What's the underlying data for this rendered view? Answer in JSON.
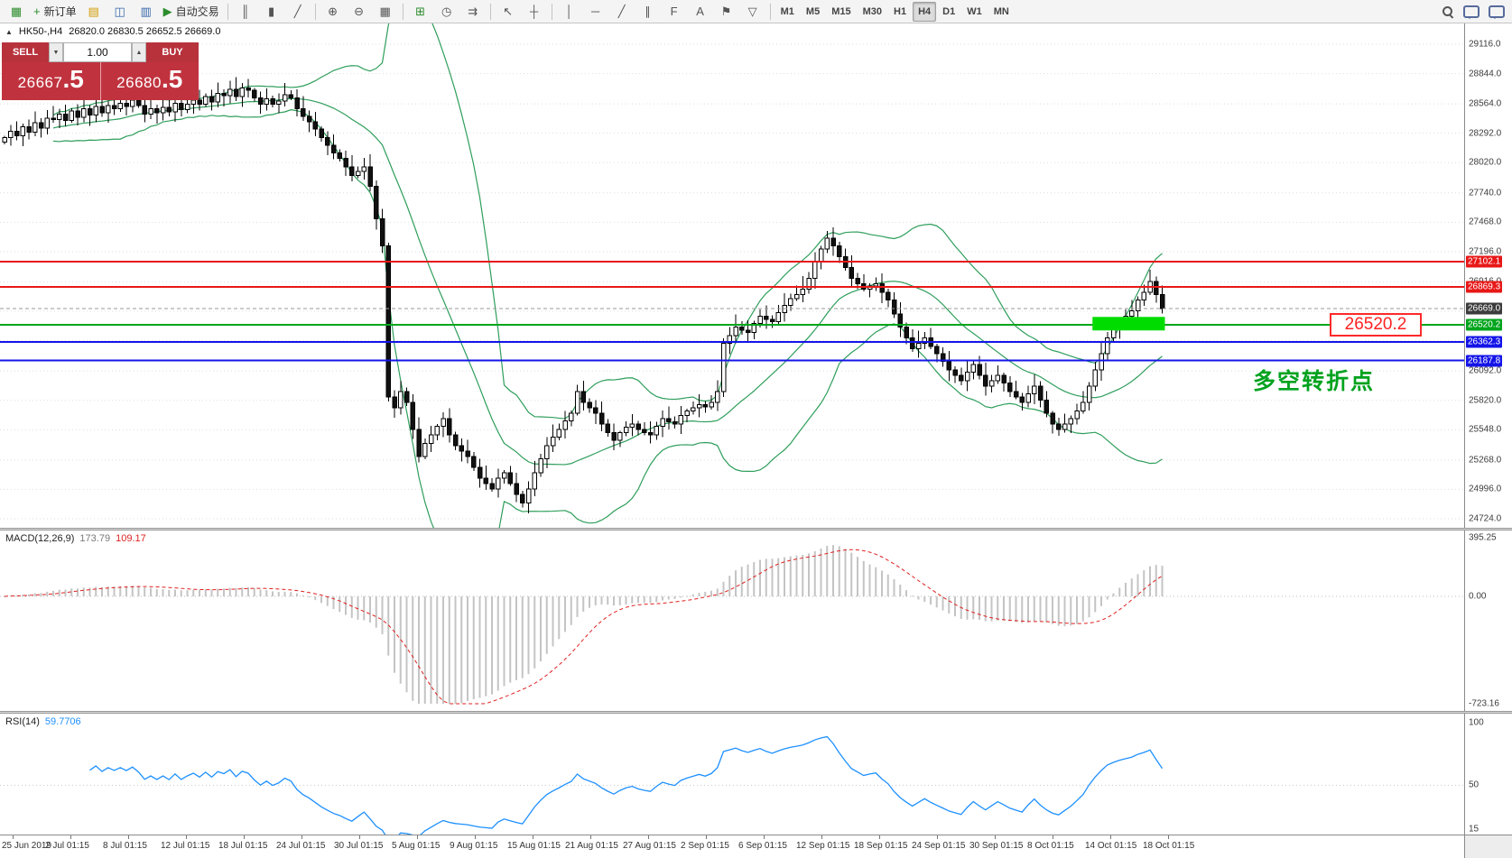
{
  "toolbar": {
    "items": [
      {
        "name": "app-icon",
        "glyph": "▦",
        "cls": "c-green",
        "static": true
      },
      {
        "name": "new-order-button",
        "glyph": "+",
        "cls": "c-green",
        "label": "新订单"
      },
      {
        "name": "market-watch-icon",
        "glyph": "▤",
        "cls": "c-amber"
      },
      {
        "name": "navigator-icon",
        "glyph": "◫",
        "cls": "c-blue"
      },
      {
        "name": "terminal-icon",
        "glyph": "▥",
        "cls": "c-blue"
      },
      {
        "name": "autotrading-button",
        "glyph": "▶",
        "cls": "c-green",
        "label": "自动交易"
      },
      {
        "sep": true
      },
      {
        "name": "bar-chart-icon",
        "glyph": "║"
      },
      {
        "name": "candlestick-chart-icon",
        "glyph": "▮"
      },
      {
        "name": "line-chart-icon",
        "glyph": "╱"
      },
      {
        "sep": true
      },
      {
        "name": "zoom-in-icon",
        "glyph": "⊕"
      },
      {
        "name": "zoom-out-icon",
        "glyph": "⊖"
      },
      {
        "name": "grid-icon",
        "glyph": "▦"
      },
      {
        "sep": true
      },
      {
        "name": "indicators-add-icon",
        "glyph": "⊞",
        "cls": "c-green"
      },
      {
        "name": "period-icon",
        "glyph": "◷"
      },
      {
        "name": "chart-shift-icon",
        "glyph": "⇉"
      },
      {
        "sep": true
      },
      {
        "name": "cursor-icon",
        "glyph": "↖"
      },
      {
        "name": "crosshair-icon",
        "glyph": "┼"
      },
      {
        "sep": true
      },
      {
        "name": "vertical-line-icon",
        "glyph": "│"
      },
      {
        "name": "horizontal-line-icon",
        "glyph": "─"
      },
      {
        "name": "trendline-icon",
        "glyph": "╱"
      },
      {
        "name": "equidistant-channel-icon",
        "glyph": "∥"
      },
      {
        "name": "fibonacci-icon",
        "glyph": "F"
      },
      {
        "name": "text-icon",
        "glyph": "A"
      },
      {
        "name": "arrows-icon",
        "glyph": "⚑"
      },
      {
        "name": "shapes-icon",
        "glyph": "▽"
      },
      {
        "sep": true
      },
      {
        "tf": true
      }
    ],
    "timeframes": [
      "M1",
      "M5",
      "M15",
      "M30",
      "H1",
      "H4",
      "D1",
      "W1",
      "MN"
    ],
    "active_timeframe": "H4",
    "right_items": [
      {
        "name": "search-icon",
        "kind": "search"
      },
      {
        "name": "chat-icon",
        "kind": "chat"
      },
      {
        "name": "community-icon",
        "kind": "chat"
      }
    ]
  },
  "chart": {
    "collapse_glyph": "▲",
    "symbol_period": "HK50-,H4",
    "ohlc": "26820.0 26830.5 26652.5 26669.0",
    "trade_panel": {
      "sell_label": "SELL",
      "buy_label": "BUY",
      "volume": "1.00",
      "down_glyph": "▼",
      "up_glyph": "▲",
      "sell_price_main": "26667",
      "sell_price_frac": ".5",
      "buy_price_main": "26680",
      "buy_price_frac": ".5"
    },
    "levels": [
      {
        "label": "27102.1",
        "price": 27102.1,
        "color": "#e81717",
        "style": "solid"
      },
      {
        "label": "26869.3",
        "price": 26869.3,
        "color": "#e81717",
        "style": "solid"
      },
      {
        "label": "26669.0",
        "price": 26669.0,
        "color": "#3c3c3c",
        "style": "current"
      },
      {
        "label": "26520.2",
        "price": 26520.2,
        "color": "#00a41c",
        "style": "solid"
      },
      {
        "label": "26362.3",
        "price": 26362.3,
        "color": "#1414e8",
        "style": "solid"
      },
      {
        "label": "26187.8",
        "price": 26187.8,
        "color": "#1414e8",
        "style": "solid"
      }
    ],
    "callout_text": "26520.2",
    "annotation_text": "多空转折点"
  },
  "macd": {
    "label": "MACD(12,26,9)",
    "value": "173.79",
    "signal": "109.17",
    "max": 395.25,
    "min": -723.16,
    "params": {
      "fast": 12,
      "slow": 26,
      "signal": 9
    }
  },
  "rsi": {
    "label": "RSI(14)",
    "value": "59.7706",
    "max": 100,
    "min": 15,
    "period": 14
  },
  "scales": {
    "price": [
      "29116.0",
      "28844.0",
      "28564.0",
      "28292.0",
      "28020.0",
      "27740.0",
      "27468.0",
      "27196.0",
      "26916.0",
      "26644.0",
      "26372.0",
      "26092.0",
      "25820.0",
      "25548.0",
      "25268.0",
      "24996.0",
      "24724.0"
    ],
    "macd": [
      "395.25",
      "0.00",
      "-723.16"
    ],
    "rsi": [
      "100",
      "50",
      "15"
    ],
    "time": [
      "25 Jun 2019",
      "2 Jul 01:15",
      "8 Jul 01:15",
      "12 Jul 01:15",
      "18 Jul 01:15",
      "24 Jul 01:15",
      "30 Jul 01:15",
      "5 Aug 01:15",
      "9 Aug 01:15",
      "15 Aug 01:15",
      "21 Aug 01:15",
      "27 Aug 01:15",
      "2 Sep 01:15",
      "6 Sep 01:15",
      "12 Sep 01:15",
      "18 Sep 01:15",
      "24 Sep 01:15",
      "30 Sep 01:15",
      "8 Oct 01:15",
      "14 Oct 01:15",
      "18 Oct 01:15"
    ]
  },
  "chart_data": {
    "type": "candlestick",
    "symbol": "HK50",
    "period": "H4",
    "price_axis": {
      "max": 29116,
      "min": 24724
    },
    "bollinger": {
      "period": 20,
      "deviation": 2,
      "color": "#2e9e5b"
    },
    "highlight": {
      "from": 179,
      "to": 190,
      "top_price": 26592,
      "bottom_price": 26467,
      "color": "#00dc00"
    },
    "closes": [
      28250,
      28310,
      28270,
      28350,
      28300,
      28390,
      28340,
      28430,
      28420,
      28470,
      28410,
      28500,
      28440,
      28520,
      28460,
      28540,
      28480,
      28550,
      28520,
      28570,
      28540,
      28600,
      28550,
      28470,
      28520,
      28480,
      28530,
      28490,
      28570,
      28510,
      28560,
      28600,
      28560,
      28630,
      28580,
      28660,
      28640,
      28700,
      28630,
      28710,
      28690,
      28620,
      28560,
      28610,
      28560,
      28590,
      28650,
      28620,
      28520,
      28450,
      28400,
      28330,
      28250,
      28180,
      28110,
      28060,
      27980,
      27900,
      27940,
      27980,
      27800,
      27500,
      27250,
      25850,
      25750,
      25900,
      25800,
      25550,
      25300,
      25420,
      25500,
      25580,
      25650,
      25500,
      25400,
      25350,
      25300,
      25200,
      25100,
      25050,
      25000,
      25100,
      25150,
      25050,
      24950,
      24870,
      25000,
      25150,
      25280,
      25400,
      25480,
      25550,
      25630,
      25700,
      25900,
      25800,
      25750,
      25700,
      25600,
      25520,
      25450,
      25520,
      25570,
      25600,
      25550,
      25520,
      25500,
      25580,
      25650,
      25620,
      25600,
      25680,
      25720,
      25750,
      25780,
      25760,
      25800,
      25900,
      26350,
      26420,
      26500,
      26470,
      26450,
      26530,
      26600,
      26570,
      26550,
      26630,
      26700,
      26760,
      26800,
      26850,
      26950,
      27100,
      27220,
      27320,
      27250,
      27150,
      27050,
      26950,
      26900,
      26850,
      26880,
      26900,
      26820,
      26750,
      26620,
      26500,
      26400,
      26300,
      26350,
      26400,
      26320,
      26250,
      26180,
      26100,
      26050,
      26000,
      26080,
      26150,
      26050,
      25950,
      26000,
      26050,
      25980,
      25900,
      25850,
      25800,
      25880,
      25950,
      25820,
      25700,
      25600,
      25550,
      25600,
      25650,
      25720,
      25800,
      25950,
      26100,
      26250,
      26400,
      26480,
      26550,
      26600,
      26650,
      26750,
      26820,
      26920,
      26800,
      26669
    ]
  }
}
